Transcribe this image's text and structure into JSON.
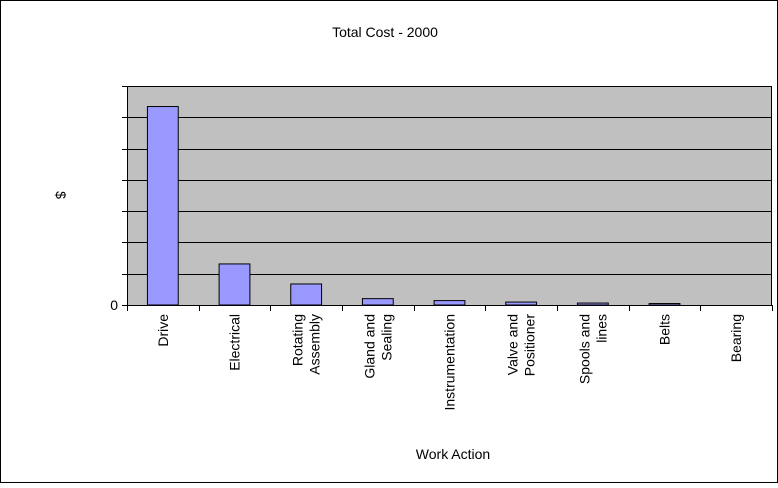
{
  "chart_data": {
    "type": "bar",
    "title": "Total Cost - 2000",
    "xlabel": "Work Action",
    "ylabel": "$",
    "categories": [
      [
        "Drive"
      ],
      [
        "Electrical"
      ],
      [
        "Rotating",
        "Assembly"
      ],
      [
        "Gland and",
        "Sealing"
      ],
      [
        "Instrumentation"
      ],
      [
        "Valve and",
        "Positioner"
      ],
      [
        "Spools and",
        "lines"
      ],
      [
        "Belts"
      ],
      [
        "Bearing"
      ]
    ],
    "values": [
      203,
      42,
      21.5,
      6.5,
      4.5,
      3,
      2,
      1.5,
      0
    ],
    "ylim": [
      0,
      224
    ],
    "gridlines": [
      0,
      32,
      64,
      96,
      128,
      160,
      192,
      224
    ],
    "y_tick_labels": [
      {
        "value": 0,
        "label": "0"
      }
    ],
    "grid": true,
    "legend": "none",
    "colors": {
      "plot_background": "#c0c0c0",
      "bar_fill": "#9999ff",
      "bar_stroke": "#000000",
      "grid": "#000000",
      "frame": "#000000"
    }
  }
}
